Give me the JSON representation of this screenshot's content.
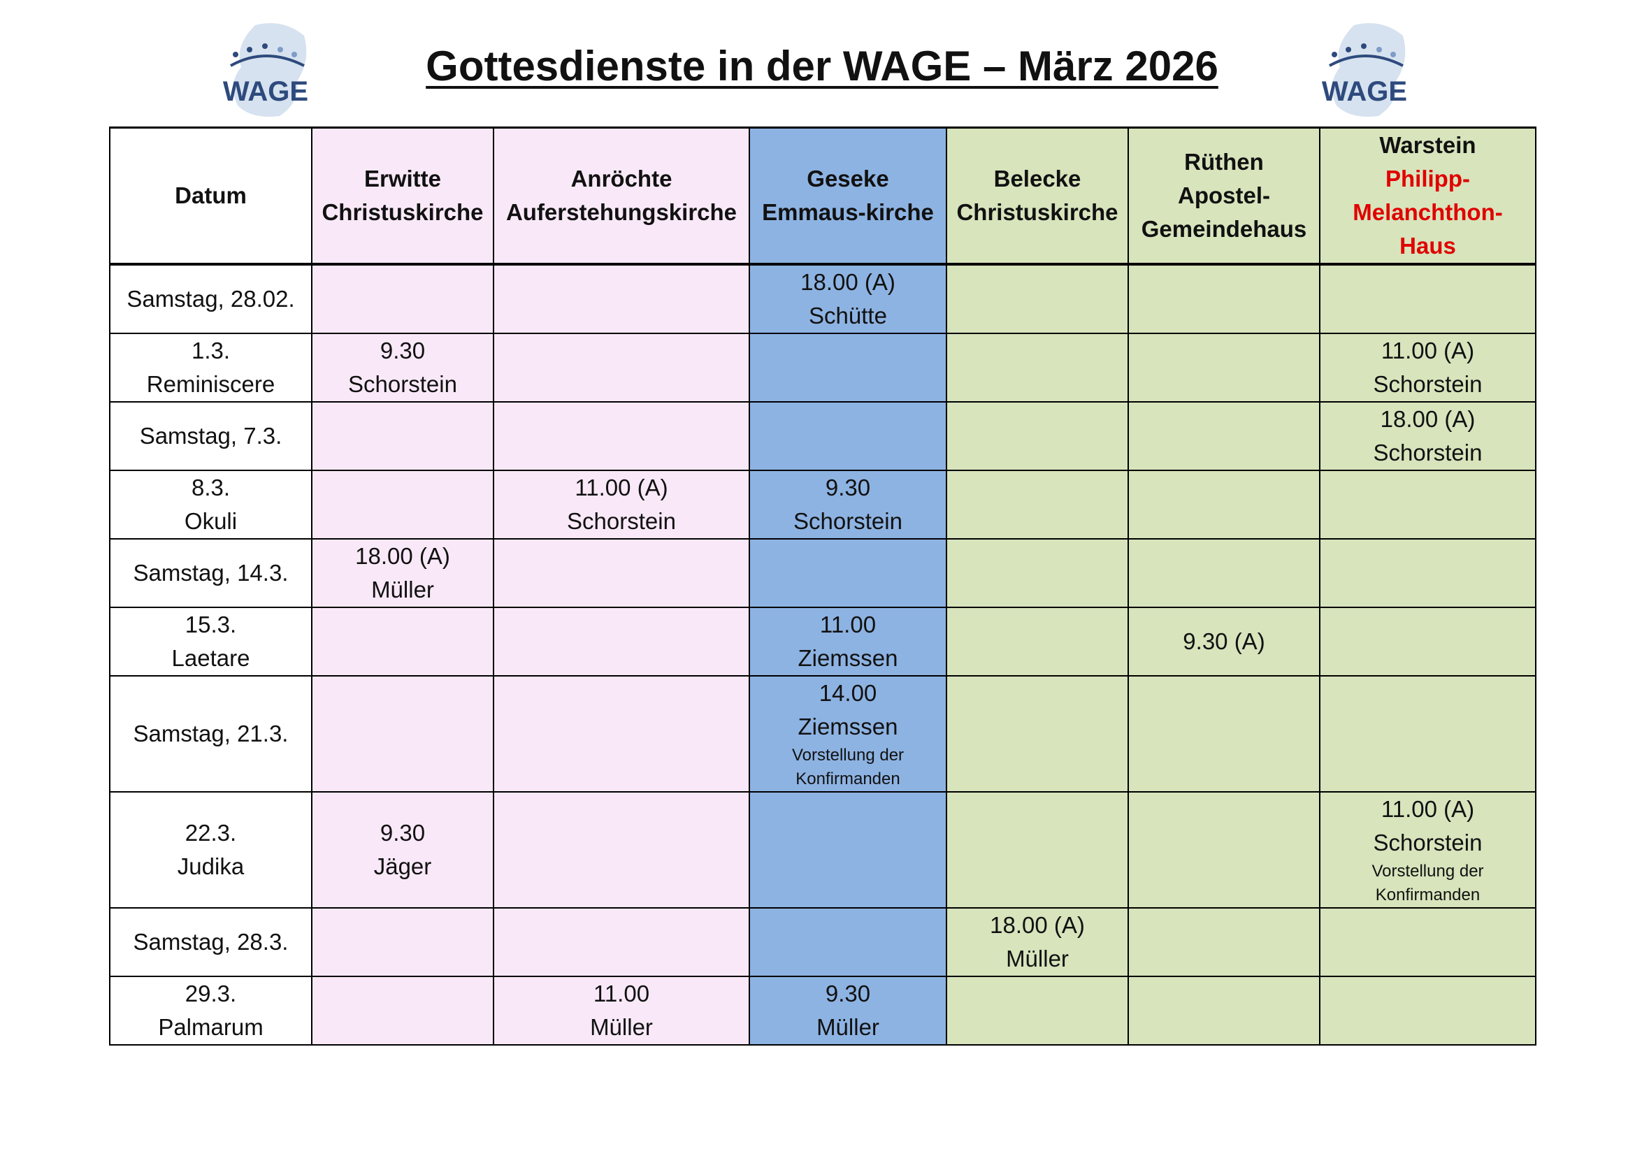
{
  "title": "Gottesdienste in der WAGE – März 2026",
  "logo_text": "WAGE",
  "colors": {
    "pink": "#f9e9f8",
    "blue": "#8db3e2",
    "green": "#d7e4bc",
    "highlight_red": "#e00000",
    "logo_blue": "#2e4a7d"
  },
  "columns": [
    {
      "lines": [
        "Datum"
      ]
    },
    {
      "lines": [
        "Erwitte",
        "Christuskirche"
      ]
    },
    {
      "lines": [
        "Anröchte",
        "Auferstehungskirche"
      ]
    },
    {
      "lines": [
        "Geseke",
        "Emmaus-kirche"
      ]
    },
    {
      "lines": [
        "Belecke",
        "Christuskirche"
      ]
    },
    {
      "lines": [
        "Rüthen",
        "Apostel-",
        "Gemeindehaus"
      ]
    },
    {
      "lines": [
        "Warstein"
      ],
      "red_lines": [
        "Philipp-",
        "Melanchthon-",
        "Haus"
      ]
    }
  ],
  "rows": [
    {
      "date": [
        "Samstag, 28.02."
      ],
      "cells": [
        [],
        [],
        [
          "18.00 (A)",
          "Schütte"
        ],
        [],
        [],
        []
      ]
    },
    {
      "date": [
        "1.3.",
        "Reminiscere"
      ],
      "cells": [
        [
          "9.30",
          "Schorstein"
        ],
        [],
        [],
        [],
        [],
        [
          "11.00 (A)",
          "Schorstein"
        ]
      ]
    },
    {
      "date": [
        "Samstag, 7.3."
      ],
      "cells": [
        [],
        [],
        [],
        [],
        [],
        [
          "18.00 (A)",
          "Schorstein"
        ]
      ]
    },
    {
      "date": [
        "8.3.",
        "Okuli"
      ],
      "cells": [
        [],
        [
          "11.00 (A)",
          "Schorstein"
        ],
        [
          "9.30",
          "Schorstein"
        ],
        [],
        [],
        []
      ]
    },
    {
      "date": [
        "Samstag, 14.3."
      ],
      "cells": [
        [
          "18.00 (A)",
          "Müller"
        ],
        [],
        [],
        [],
        [],
        []
      ]
    },
    {
      "date": [
        "15.3.",
        "Laetare"
      ],
      "cells": [
        [],
        [],
        [
          "11.00",
          "Ziemssen"
        ],
        [],
        [
          "9.30 (A)"
        ],
        []
      ]
    },
    {
      "date": [
        "Samstag, 21.3."
      ],
      "cells": [
        [],
        [],
        [
          "14.00",
          "Ziemssen"
        ],
        [],
        [],
        []
      ],
      "notes": [
        null,
        null,
        "Vorstellung der Konfirmanden",
        null,
        null,
        null
      ]
    },
    {
      "date": [
        "22.3.",
        "Judika"
      ],
      "cells": [
        [
          "9.30",
          "Jäger"
        ],
        [],
        [],
        [],
        [],
        [
          "11.00 (A)",
          "Schorstein"
        ]
      ],
      "notes": [
        null,
        null,
        null,
        null,
        null,
        "Vorstellung der Konfirmanden"
      ]
    },
    {
      "date": [
        "Samstag, 28.3."
      ],
      "cells": [
        [],
        [],
        [],
        [
          "18.00 (A)",
          "Müller"
        ],
        [],
        []
      ]
    },
    {
      "date": [
        "29.3.",
        "Palmarum"
      ],
      "cells": [
        [],
        [
          "11.00",
          "Müller"
        ],
        [
          "9.30",
          "Müller"
        ],
        [],
        [],
        []
      ]
    }
  ]
}
